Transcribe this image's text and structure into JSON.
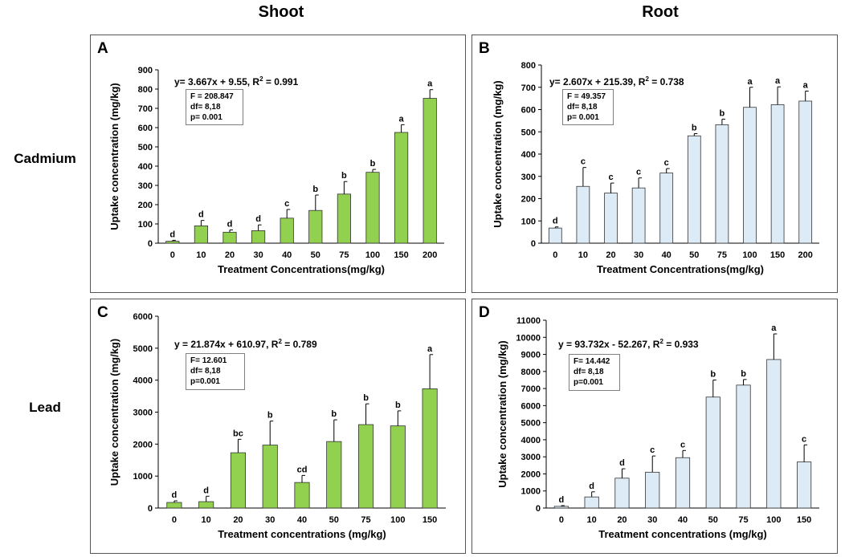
{
  "column_headers": [
    "Shoot",
    "Root"
  ],
  "row_headers": [
    "Cadmium",
    "Lead"
  ],
  "colors": {
    "shoot_bar": "#92d050",
    "root_bar": "#ddebf7",
    "bar_stroke": "#333333",
    "panel_border": "#555555"
  },
  "chart_data": [
    {
      "panel": "A",
      "type": "bar",
      "categories": [
        "0",
        "10",
        "20",
        "30",
        "40",
        "50",
        "75",
        "100",
        "150",
        "200"
      ],
      "values": [
        10,
        90,
        57,
        65,
        130,
        170,
        255,
        368,
        575,
        752
      ],
      "errors": [
        5,
        28,
        12,
        30,
        45,
        80,
        65,
        15,
        40,
        45
      ],
      "letters": [
        "d",
        "d",
        "d",
        "d",
        "c",
        "b",
        "b",
        "b",
        "a",
        "a"
      ],
      "ylim": [
        0,
        900
      ],
      "yticks": [
        0,
        100,
        200,
        300,
        400,
        500,
        600,
        700,
        800,
        900
      ],
      "ylabel": "Uptake concentration  (mg/kg)",
      "xlabel": "Treatment Concentrations(mg/kg)",
      "equation_main": "y= 3.667x + 9.55, R",
      "equation_tail": " = 0.991",
      "stats": [
        "F = 208.847",
        "df= 8,18",
        "p= 0.001"
      ]
    },
    {
      "panel": "B",
      "type": "bar",
      "categories": [
        "0",
        "10",
        "20",
        "30",
        "40",
        "50",
        "75",
        "100",
        "150",
        "200"
      ],
      "values": [
        68,
        255,
        225,
        248,
        315,
        482,
        532,
        610,
        622,
        638
      ],
      "errors": [
        5,
        85,
        45,
        45,
        20,
        10,
        25,
        90,
        80,
        45
      ],
      "letters": [
        "d",
        "c",
        "c",
        "c",
        "c",
        "b",
        "b",
        "a",
        "a",
        "a"
      ],
      "ylim": [
        0,
        800
      ],
      "yticks": [
        0,
        100,
        200,
        300,
        400,
        500,
        600,
        700,
        800
      ],
      "ylabel": "Uptake concentration  (mg/kg)",
      "xlabel": "Treatment Concentrations(mg/kg)",
      "equation_main": "y= 2.607x + 215.39, R",
      "equation_tail": " = 0.738",
      "stats": [
        "F = 49.357",
        "df= 8,18",
        "p= 0.001"
      ]
    },
    {
      "panel": "C",
      "type": "bar",
      "categories": [
        "0",
        "10",
        "20",
        "30",
        "40",
        "50",
        "75",
        "100",
        "150"
      ],
      "values": [
        175,
        200,
        1730,
        1970,
        800,
        2080,
        2610,
        2570,
        3730
      ],
      "errors": [
        50,
        170,
        420,
        750,
        220,
        680,
        650,
        470,
        1070
      ],
      "letters": [
        "d",
        "d",
        "bc",
        "b",
        "cd",
        "b",
        "b",
        "b",
        "a"
      ],
      "ylim": [
        0,
        6000
      ],
      "yticks": [
        0,
        1000,
        2000,
        3000,
        4000,
        5000,
        6000
      ],
      "ylabel": "Uptake concentration  (mg/kg)",
      "xlabel": "Treatment concentrations (mg/kg)",
      "equation_main": "y = 21.874x + 610.97, R",
      "equation_tail": " = 0.789",
      "stats": [
        "F= 12.601",
        "df= 8,18",
        "p=0.001"
      ]
    },
    {
      "panel": "D",
      "type": "bar",
      "categories": [
        "0",
        "10",
        "20",
        "30",
        "40",
        "50",
        "75",
        "100",
        "150"
      ],
      "values": [
        100,
        650,
        1750,
        2100,
        2950,
        6500,
        7200,
        8700,
        2700
      ],
      "errors": [
        40,
        300,
        550,
        950,
        420,
        1000,
        330,
        1500,
        1000
      ],
      "letters": [
        "d",
        "d",
        "d",
        "c",
        "c",
        "b",
        "b",
        "a",
        "c"
      ],
      "ylim": [
        0,
        11000
      ],
      "yticks": [
        0,
        1000,
        2000,
        3000,
        4000,
        5000,
        6000,
        7000,
        8000,
        9000,
        10000,
        11000
      ],
      "ylabel": "Uptake concentration (mg/kg)",
      "xlabel": "Treatment concentrations (mg/kg)",
      "equation_main": "y = 93.732x - 52.267, R",
      "equation_tail": " = 0.933",
      "stats": [
        "F= 14.442",
        "df= 8,18",
        "p=0.001"
      ]
    }
  ]
}
